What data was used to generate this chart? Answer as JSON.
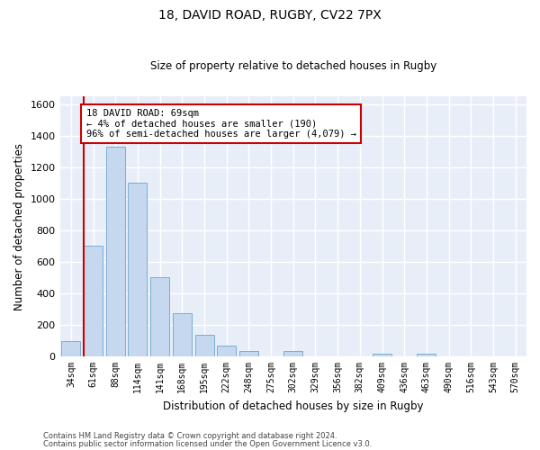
{
  "title1": "18, DAVID ROAD, RUGBY, CV22 7PX",
  "title2": "Size of property relative to detached houses in Rugby",
  "xlabel": "Distribution of detached houses by size in Rugby",
  "ylabel": "Number of detached properties",
  "footer1": "Contains HM Land Registry data © Crown copyright and database right 2024.",
  "footer2": "Contains public sector information licensed under the Open Government Licence v3.0.",
  "categories": [
    "34sqm",
    "61sqm",
    "88sqm",
    "114sqm",
    "141sqm",
    "168sqm",
    "195sqm",
    "222sqm",
    "248sqm",
    "275sqm",
    "302sqm",
    "329sqm",
    "356sqm",
    "382sqm",
    "409sqm",
    "436sqm",
    "463sqm",
    "490sqm",
    "516sqm",
    "543sqm",
    "570sqm"
  ],
  "values": [
    100,
    700,
    1330,
    1100,
    500,
    275,
    135,
    70,
    35,
    0,
    35,
    0,
    0,
    0,
    15,
    0,
    20,
    0,
    0,
    0,
    0
  ],
  "bar_color": "#c5d8ef",
  "bar_edge_color": "#7aadd4",
  "background_color": "#e8eef8",
  "grid_color": "#ffffff",
  "vline_color": "#cc0000",
  "annotation_text": "18 DAVID ROAD: 69sqm\n← 4% of detached houses are smaller (190)\n96% of semi-detached houses are larger (4,079) →",
  "annotation_box_color": "#ffffff",
  "annotation_box_edge_color": "#cc0000",
  "ylim": [
    0,
    1650
  ],
  "yticks": [
    0,
    200,
    400,
    600,
    800,
    1000,
    1200,
    1400,
    1600
  ],
  "fig_bg": "#ffffff"
}
